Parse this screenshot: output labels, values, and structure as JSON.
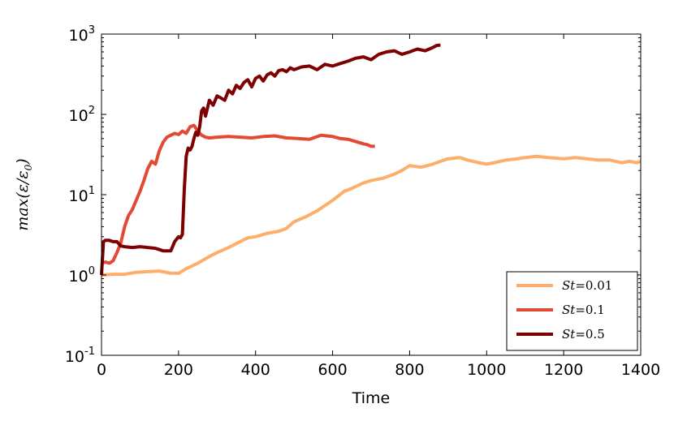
{
  "chart_data": {
    "type": "line",
    "xlabel": "Time",
    "ylabel": "max(ε/ε₀)",
    "ylabel_parts": {
      "fn": "max",
      "num": "ε",
      "den": "ε",
      "den_sub": "0"
    },
    "xlim": [
      0,
      1400
    ],
    "ylim": [
      0.1,
      1000
    ],
    "y_scale": "log",
    "x_ticks": [
      "0",
      "200",
      "400",
      "600",
      "800",
      "1000",
      "1200",
      "1400"
    ],
    "x_tick_values": [
      0,
      200,
      400,
      600,
      800,
      1000,
      1200,
      1400
    ],
    "y_ticks": [
      {
        "value": 0.1,
        "base": "10",
        "exp": "-1"
      },
      {
        "value": 1,
        "base": "10",
        "exp": "0"
      },
      {
        "value": 10,
        "base": "10",
        "exp": "1"
      },
      {
        "value": 100,
        "base": "10",
        "exp": "2"
      },
      {
        "value": 1000,
        "base": "10",
        "exp": "3"
      }
    ],
    "grid": false,
    "legend_position": "bottom-right",
    "series": [
      {
        "name": "St = 0.01",
        "label_var": "St",
        "label_val": "0.01",
        "color": "#fdae6b",
        "width": 4,
        "x": [
          0,
          30,
          60,
          90,
          120,
          150,
          180,
          200,
          220,
          250,
          280,
          300,
          330,
          360,
          380,
          400,
          430,
          460,
          480,
          500,
          530,
          560,
          600,
          630,
          650,
          680,
          700,
          730,
          760,
          780,
          800,
          830,
          860,
          880,
          900,
          930,
          950,
          980,
          1000,
          1020,
          1050,
          1080,
          1100,
          1130,
          1160,
          1200,
          1230,
          1260,
          1290,
          1320,
          1350,
          1370,
          1390,
          1400
        ],
        "y": [
          1.0,
          1.02,
          1.02,
          1.08,
          1.1,
          1.12,
          1.05,
          1.05,
          1.2,
          1.4,
          1.7,
          1.9,
          2.2,
          2.6,
          2.9,
          3.0,
          3.3,
          3.5,
          3.8,
          4.6,
          5.3,
          6.3,
          8.5,
          11.0,
          12.0,
          14.0,
          15.0,
          16.0,
          18.0,
          20.0,
          23.0,
          22.0,
          24.0,
          26.0,
          28.0,
          29.0,
          27.0,
          25.0,
          24.0,
          25.0,
          27.0,
          28.0,
          29.0,
          30.0,
          29.0,
          28.0,
          29.0,
          28.0,
          27.0,
          27.0,
          25.0,
          26.0,
          25.0,
          26.0
        ]
      },
      {
        "name": "St = 0.1",
        "label_var": "St",
        "label_val": "0.1",
        "color": "#e34a33",
        "width": 4,
        "x": [
          0,
          10,
          20,
          30,
          40,
          50,
          60,
          70,
          80,
          90,
          100,
          110,
          120,
          130,
          140,
          150,
          160,
          170,
          180,
          190,
          200,
          210,
          220,
          230,
          240,
          250,
          260,
          270,
          280,
          300,
          330,
          360,
          390,
          420,
          450,
          480,
          510,
          540,
          570,
          600,
          620,
          640,
          660,
          680,
          690,
          700,
          710
        ],
        "y": [
          1.4,
          1.45,
          1.4,
          1.5,
          1.9,
          2.5,
          4.0,
          5.5,
          6.5,
          8.5,
          11.0,
          15.0,
          21.0,
          26.0,
          24.0,
          35.0,
          45.0,
          52.0,
          55.0,
          58.0,
          56.0,
          62.0,
          58.0,
          70.0,
          73.0,
          62.0,
          55.0,
          52.0,
          51.0,
          52.0,
          53.0,
          52.0,
          51.0,
          53.0,
          54.0,
          51.0,
          50.0,
          49.0,
          55.0,
          53.0,
          50.0,
          49.0,
          46.0,
          43.0,
          42.0,
          40.0,
          40.0
        ]
      },
      {
        "name": "St = 0.5",
        "label_var": "St",
        "label_val": "0.5",
        "color": "#7f0000",
        "width": 4,
        "x": [
          0,
          5,
          10,
          20,
          30,
          40,
          50,
          60,
          80,
          100,
          120,
          140,
          160,
          180,
          190,
          200,
          205,
          210,
          215,
          220,
          225,
          230,
          235,
          240,
          245,
          250,
          255,
          260,
          265,
          270,
          280,
          290,
          300,
          310,
          320,
          330,
          340,
          350,
          360,
          370,
          380,
          390,
          400,
          410,
          420,
          430,
          440,
          450,
          460,
          470,
          480,
          490,
          500,
          520,
          540,
          560,
          580,
          600,
          620,
          640,
          660,
          680,
          700,
          720,
          740,
          760,
          780,
          800,
          820,
          840,
          860,
          870,
          880
        ],
        "y": [
          1.0,
          2.6,
          2.7,
          2.7,
          2.6,
          2.6,
          2.3,
          2.25,
          2.2,
          2.25,
          2.2,
          2.15,
          2.0,
          2.0,
          2.6,
          3.0,
          2.9,
          3.2,
          12.0,
          30.0,
          38.0,
          36.0,
          40.0,
          50.0,
          60.0,
          55.0,
          70.0,
          110.0,
          120.0,
          95.0,
          150.0,
          130.0,
          170.0,
          160.0,
          150.0,
          200.0,
          180.0,
          230.0,
          210.0,
          250.0,
          270.0,
          220.0,
          280.0,
          300.0,
          260.0,
          310.0,
          330.0,
          300.0,
          350.0,
          360.0,
          340.0,
          380.0,
          360.0,
          390.0,
          400.0,
          360.0,
          420.0,
          400.0,
          430.0,
          460.0,
          500.0,
          520.0,
          480.0,
          560.0,
          600.0,
          620.0,
          560.0,
          600.0,
          650.0,
          620.0,
          680.0,
          720.0,
          730.0
        ]
      }
    ]
  }
}
